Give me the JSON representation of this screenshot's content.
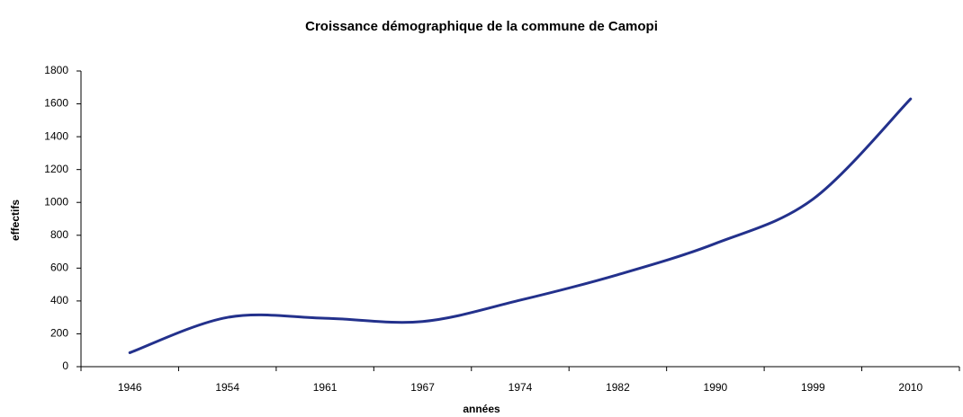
{
  "chart_data": {
    "type": "line",
    "title": "Croissance démographique de la commune de Camopi",
    "x_label": "années",
    "y_label": "effectifs",
    "categories": [
      "1946",
      "1954",
      "1961",
      "1967",
      "1974",
      "1982",
      "1990",
      "1999",
      "2010"
    ],
    "series": [
      {
        "name": "effectifs",
        "color": "#23318c",
        "values": [
          85,
          300,
          295,
          275,
          405,
          560,
          750,
          1020,
          1630
        ]
      }
    ],
    "ylim": [
      0,
      1800
    ],
    "yticks": [
      0,
      200,
      400,
      600,
      800,
      1000,
      1200,
      1400,
      1600,
      1800
    ],
    "grid": false,
    "smooth": true
  }
}
